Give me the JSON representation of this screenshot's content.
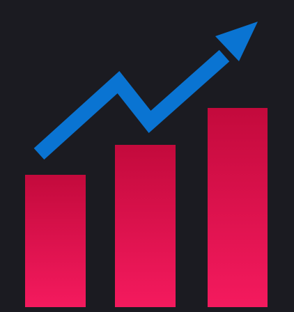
{
  "icon": {
    "name": "growth-chart-icon",
    "colors": {
      "background": "#1b1b21",
      "bar_top": "#c30a3c",
      "bar_bottom": "#f41a5e",
      "arrow": "#0a74d2"
    },
    "bar_levels": [
      0.53,
      0.65,
      0.8
    ]
  }
}
